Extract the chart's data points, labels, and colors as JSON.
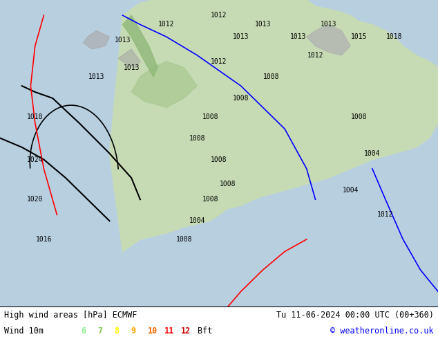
{
  "title_left": "High wind areas [hPa] ECMWF",
  "title_right": "Tu 11-06-2024 00:00 UTC (00+360)",
  "legend_label": "Wind 10m",
  "legend_values": [
    "6",
    "7",
    "8",
    "9",
    "10",
    "11",
    "12"
  ],
  "legend_colors": [
    "#90ee90",
    "#7ec850",
    "#ffff00",
    "#ffa500",
    "#ff6600",
    "#ff0000",
    "#cc0000"
  ],
  "legend_suffix": "Bft",
  "copyright": "© weatheronline.co.uk",
  "bg_color": "#ffffff",
  "font_family": "monospace"
}
